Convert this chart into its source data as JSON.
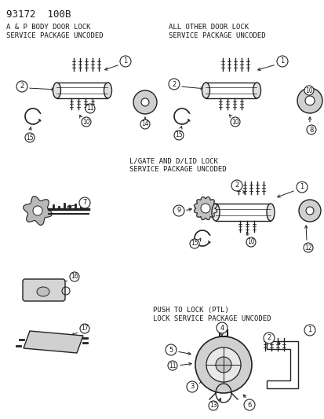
{
  "title": "93172  100B",
  "bg_color": "#ffffff",
  "s1_title_l1": "A & P BODY DOOR LOCK",
  "s1_title_l2": "SERVICE PACKAGE UNCODED",
  "s2_title_l1": "ALL OTHER DOOR LOCK",
  "s2_title_l2": "SERVICE PACKAGE UNCODED",
  "s3_title_l1": "L/GATE AND D/LID LOCK",
  "s3_title_l2": "SERVICE PACKAGE UNCODED",
  "s4_title_l1": "PUSH TO LOCK (PTL)",
  "s4_title_l2": "LOCK SERVICE PACKAGE UNCODED",
  "fc": "#1a1a1a",
  "dc": "#222222",
  "figsize": [
    4.14,
    5.33
  ],
  "dpi": 100
}
